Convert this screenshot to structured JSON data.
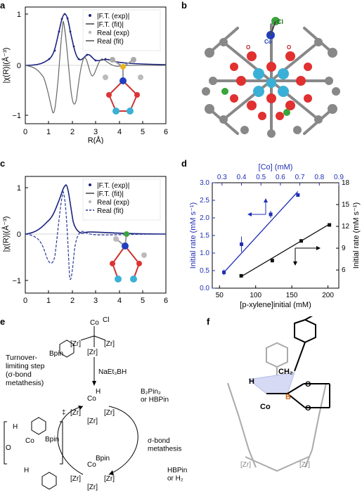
{
  "panels": {
    "a": {
      "label": "a",
      "ylabel": "|χ(R)|(Å⁻³)",
      "xlabel": "R(Å)",
      "xticks": [
        "0",
        "1",
        "2",
        "3",
        "4",
        "5",
        "6"
      ],
      "yticks": [
        "1",
        "0",
        "−1"
      ],
      "legend": [
        "|F.T. (exp)|",
        "|F.T. (fit)|",
        "Real (exp)",
        "Real (fit)"
      ]
    },
    "b": {
      "label": "b",
      "atom_labels": [
        "Cl",
        "Co",
        "O"
      ]
    },
    "c": {
      "label": "c",
      "ylabel": "|χ(R)|(Å⁻³)",
      "xlabel": "R(Å)",
      "xticks": [
        "0",
        "1",
        "2",
        "3",
        "4",
        "5",
        "6"
      ],
      "yticks": [
        "1",
        "0",
        "−1"
      ],
      "legend": [
        "|F.T. (exp)|",
        "|F.T. (fit)|",
        "Real (exp)",
        "Real (fit)"
      ]
    },
    "d": {
      "label": "d",
      "top_axis_label": "[Co] (mM)",
      "top_ticks": [
        "0.3",
        "0.4",
        "0.5",
        "0.6",
        "0.7",
        "0.8",
        "0.9"
      ],
      "left_label": "Initial rate (mM s⁻¹)",
      "left_ticks": [
        "0.0",
        "0.5",
        "1.0",
        "1.5",
        "2.0",
        "2.5",
        "3.0"
      ],
      "right_label": "Initial rate (mM s⁻¹)",
      "right_ticks": [
        "6",
        "9",
        "12",
        "15",
        "18"
      ],
      "bottom_label": "[p-xylene]initial (mM)",
      "bottom_ticks": [
        "50",
        "100",
        "150",
        "200"
      ]
    },
    "e": {
      "label": "e",
      "tl_step": "Turnover-\nlimiting step\n(σ-bond\nmetathesis)",
      "reagent1": "NaEt₃BH",
      "reagent2": "B₂Pin₂\nor HBPin",
      "sigma": "σ-bond\nmetathesis",
      "product": "HBPin\nor H₂",
      "co_cl": "Cl",
      "co": "Co",
      "zr": "[Zr]",
      "bpin": "Bpin",
      "h": "H",
      "o": "O",
      "dagger": "‡"
    },
    "f": {
      "label": "f",
      "atoms": [
        "H",
        "CH₂",
        "B",
        "Co",
        "O",
        "O",
        "[Zr]",
        "[Zr]"
      ]
    }
  },
  "chart_data": [
    {
      "panel": "d",
      "type": "scatter",
      "series": [
        {
          "color": "#1f2fb5",
          "x_axis": "top",
          "y_axis": "left",
          "x": [
            0.31,
            0.4,
            0.55,
            0.69
          ],
          "y": [
            0.45,
            1.25,
            2.1,
            2.65
          ],
          "error": [
            0.08,
            0.22,
            0.1,
            0.05
          ],
          "fit": [
            [
              0.31,
              0.45
            ],
            [
              0.69,
              2.75
            ]
          ]
        },
        {
          "color": "#111111",
          "x_axis": "bottom",
          "y_axis": "right",
          "x": [
            80,
            123,
            163,
            202
          ],
          "y": [
            5.2,
            7.3,
            10.0,
            12.2
          ],
          "error": [
            0.15,
            0.25,
            0.15,
            0.2
          ],
          "fit": [
            [
              80,
              5.1
            ],
            [
              202,
              12.3
            ]
          ]
        }
      ],
      "xlim_top": [
        0.25,
        0.9
      ],
      "xlim_bottom": [
        40,
        215
      ],
      "ylim_left": [
        0,
        3.0
      ],
      "ylim_right": [
        3.5,
        18
      ]
    }
  ]
}
